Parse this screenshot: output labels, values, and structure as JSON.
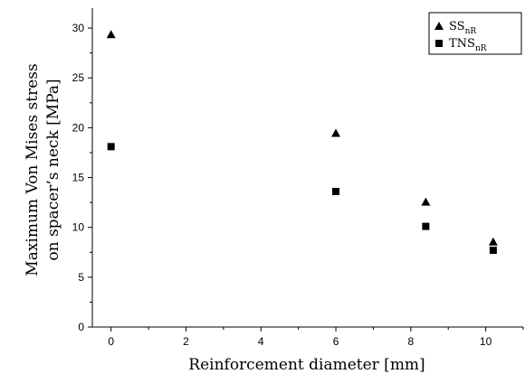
{
  "chart_data": {
    "type": "scatter",
    "xlabel": "Reinforcement diameter [mm]",
    "ylabel_line1": "Maximum Von Mises stress",
    "ylabel_line2": "on spacer’s neck [MPa]",
    "xlim": [
      -0.5,
      11
    ],
    "ylim": [
      0,
      32
    ],
    "xticks": [
      0,
      2,
      4,
      6,
      8,
      10
    ],
    "yticks": [
      0,
      5,
      10,
      15,
      20,
      25,
      30
    ],
    "legend_position": "top-right",
    "series": [
      {
        "name": "SS",
        "subscript": "nR",
        "marker": "triangle",
        "color": "#000000",
        "x": [
          0,
          6,
          8.4,
          10.2
        ],
        "y": [
          29.3,
          19.4,
          12.5,
          8.5
        ]
      },
      {
        "name": "TNS",
        "subscript": "nR",
        "marker": "square",
        "color": "#000000",
        "x": [
          0,
          6,
          8.4,
          10.2
        ],
        "y": [
          18.1,
          13.6,
          10.1,
          7.7
        ]
      }
    ]
  }
}
